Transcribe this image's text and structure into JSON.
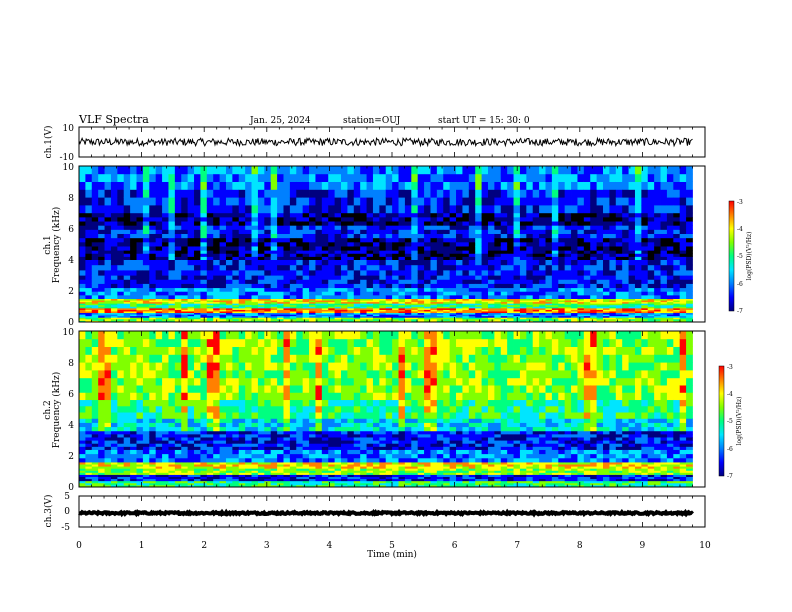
{
  "header": {
    "title": "VLF Spectra",
    "date": "Jan. 25, 2024",
    "station": "station=OUJ",
    "start": "start UT =  15: 30: 0"
  },
  "colors": {
    "background": "#ffffff",
    "axis": "#000000",
    "trace": "#000000",
    "colormap": [
      "#000000",
      "#00007f",
      "#0000ff",
      "#0080ff",
      "#00e5ff",
      "#00ff80",
      "#80ff00",
      "#ffff00",
      "#ff8000",
      "#ff0000",
      "#ffc0c0",
      "#ffffff"
    ]
  },
  "chart_data": [
    {
      "type": "line",
      "name": "ch1-waveform",
      "ylabel": "ch.1(V)",
      "ylim": [
        -10,
        10
      ],
      "yticks": [
        "10",
        "-10"
      ],
      "xlim": [
        0,
        10
      ],
      "level": 0,
      "noise_amplitude": 2.5,
      "data_end_min": 9.8
    },
    {
      "type": "heatmap",
      "name": "ch1-spectrogram",
      "ylabel": "Frequency (kHz)",
      "channel_label": "ch.1",
      "ylim": [
        0,
        10
      ],
      "yticks": [
        "0",
        "2",
        "4",
        "6",
        "8",
        "10"
      ],
      "xlim": [
        0,
        10
      ],
      "data_end_min": 9.8,
      "colorbar": {
        "label": "log(PSD)(V²/Hz)",
        "range": [
          -7,
          -3
        ],
        "ticks": [
          "-3",
          "-4",
          "-5",
          "-6",
          "-7"
        ]
      },
      "bands": [
        {
          "f0": 0.0,
          "f1": 0.3,
          "level": 6
        },
        {
          "f0": 0.3,
          "f1": 0.6,
          "level": 3
        },
        {
          "f0": 0.6,
          "f1": 0.9,
          "level": 8
        },
        {
          "f0": 0.9,
          "f1": 1.2,
          "level": 5
        },
        {
          "f0": 1.2,
          "f1": 1.5,
          "level": 7
        },
        {
          "f0": 1.5,
          "f1": 2.2,
          "level": 3
        },
        {
          "f0": 2.2,
          "f1": 3.0,
          "level": 2
        },
        {
          "f0": 3.0,
          "f1": 4.0,
          "level": 2
        },
        {
          "f0": 4.0,
          "f1": 4.6,
          "level": 1
        },
        {
          "f0": 4.6,
          "f1": 5.4,
          "level": 1
        },
        {
          "f0": 5.4,
          "f1": 6.2,
          "level": 2
        },
        {
          "f0": 6.2,
          "f1": 7.0,
          "level": 1
        },
        {
          "f0": 7.0,
          "f1": 8.5,
          "level": 2
        },
        {
          "f0": 8.5,
          "f1": 10.0,
          "level": 3
        }
      ]
    },
    {
      "type": "heatmap",
      "name": "ch2-spectrogram",
      "ylabel": "Frequency (kHz)",
      "channel_label": "ch.2",
      "ylim": [
        0,
        10
      ],
      "yticks": [
        "0",
        "2",
        "4",
        "6",
        "8",
        "10"
      ],
      "xlim": [
        0,
        10
      ],
      "data_end_min": 9.8,
      "colorbar": {
        "label": "log(PSD)(V²/Hz)",
        "range": [
          -7,
          -3
        ],
        "ticks": [
          "-3",
          "-4",
          "-5",
          "-6",
          "-7"
        ]
      },
      "bands": [
        {
          "f0": 0.0,
          "f1": 0.4,
          "level": 5
        },
        {
          "f0": 0.4,
          "f1": 0.8,
          "level": 2
        },
        {
          "f0": 0.8,
          "f1": 1.2,
          "level": 6
        },
        {
          "f0": 1.2,
          "f1": 1.6,
          "level": 7
        },
        {
          "f0": 1.6,
          "f1": 2.4,
          "level": 3
        },
        {
          "f0": 2.4,
          "f1": 3.0,
          "level": 2
        },
        {
          "f0": 3.0,
          "f1": 3.6,
          "level": 2
        },
        {
          "f0": 3.6,
          "f1": 4.4,
          "level": 4
        },
        {
          "f0": 4.4,
          "f1": 5.6,
          "level": 5
        },
        {
          "f0": 5.6,
          "f1": 7.0,
          "level": 6
        },
        {
          "f0": 7.0,
          "f1": 8.5,
          "level": 6
        },
        {
          "f0": 8.5,
          "f1": 10.0,
          "level": 6
        }
      ]
    },
    {
      "type": "line",
      "name": "ch3-waveform",
      "ylabel": "ch.3(V)",
      "ylim": [
        -5,
        5
      ],
      "yticks": [
        "5",
        "0",
        "-5"
      ],
      "xlim": [
        0,
        10
      ],
      "level": -0.5,
      "noise_amplitude": 0.3,
      "data_end_min": 9.8,
      "xlabel": "Time (min)",
      "xticks": [
        "0",
        "1",
        "2",
        "3",
        "4",
        "5",
        "6",
        "7",
        "8",
        "9",
        "10"
      ]
    }
  ]
}
